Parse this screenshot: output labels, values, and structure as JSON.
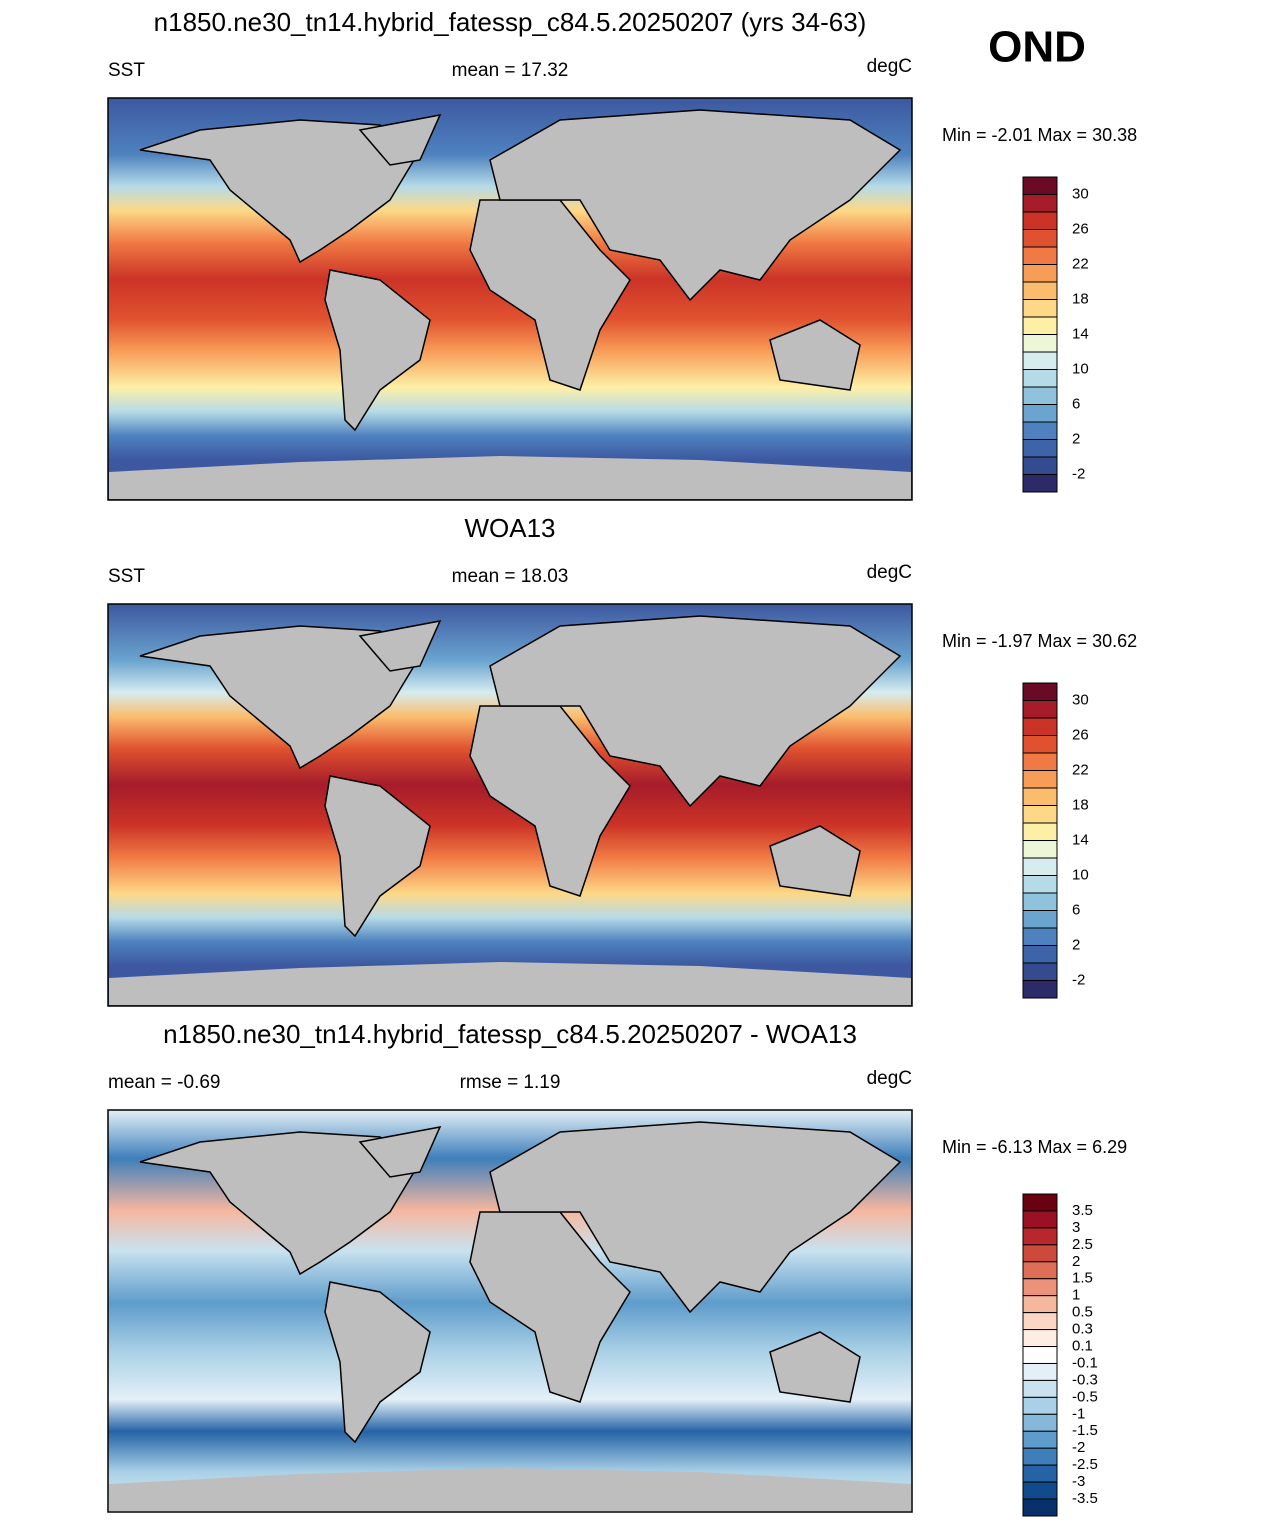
{
  "season": "OND",
  "panels": [
    {
      "title": "n1850.ne30_tn14.hybrid_fatessp_c84.5.20250207 (yrs 34-63)",
      "left": "SST",
      "center": "mean =  17.32",
      "right": "degC",
      "minmax": "Min =  -2.01 Max =  30.38",
      "colorbar": {
        "labels": [
          30,
          26,
          22,
          18,
          14,
          10,
          6,
          2,
          -2
        ],
        "colors": [
          "#6b0a25",
          "#a51c2a",
          "#cc3327",
          "#e0522f",
          "#f07a43",
          "#f89d58",
          "#fbbd6d",
          "#fdd887",
          "#fdf0a6",
          "#eef6d8",
          "#d6ecef",
          "#b6dbe8",
          "#8fc2dd",
          "#6aa4cf",
          "#4e82bf",
          "#3d63a8",
          "#344b8f",
          "#2c2a68"
        ]
      }
    },
    {
      "title": "WOA13",
      "left": "SST",
      "center": "mean =  18.03",
      "right": "degC",
      "minmax": "Min =  -1.97 Max =  30.62",
      "colorbar": {
        "labels": [
          30,
          26,
          22,
          18,
          14,
          10,
          6,
          2,
          -2
        ],
        "colors": [
          "#6b0a25",
          "#a51c2a",
          "#cc3327",
          "#e0522f",
          "#f07a43",
          "#f89d58",
          "#fbbd6d",
          "#fdd887",
          "#fdf0a6",
          "#eef6d8",
          "#d6ecef",
          "#b6dbe8",
          "#8fc2dd",
          "#6aa4cf",
          "#4e82bf",
          "#3d63a8",
          "#344b8f",
          "#2c2a68"
        ]
      }
    },
    {
      "title": "n1850.ne30_tn14.hybrid_fatessp_c84.5.20250207 - WOA13",
      "left": "mean =  -0.69",
      "center": "rmse =   1.19",
      "right": "degC",
      "minmax": "Min =  -6.13 Max =   6.29",
      "colorbar": {
        "labels": [
          3.5,
          3,
          2.5,
          2,
          1.5,
          1,
          0.5,
          0.3,
          0.1,
          -0.1,
          -0.3,
          -0.5,
          -1,
          -1.5,
          -2,
          -2.5,
          -3,
          -3.5
        ],
        "colors": [
          "#6b0012",
          "#9a1024",
          "#b8272e",
          "#cc4a3c",
          "#de6e55",
          "#ec9278",
          "#f6b79f",
          "#fbd6c4",
          "#fdede3",
          "#ffffff",
          "#e4f0f7",
          "#c9e2ef",
          "#a9d0e6",
          "#85b8da",
          "#5e9ccb",
          "#3e7fbb",
          "#2563a6",
          "#124b8b",
          "#08306b"
        ]
      }
    }
  ]
}
